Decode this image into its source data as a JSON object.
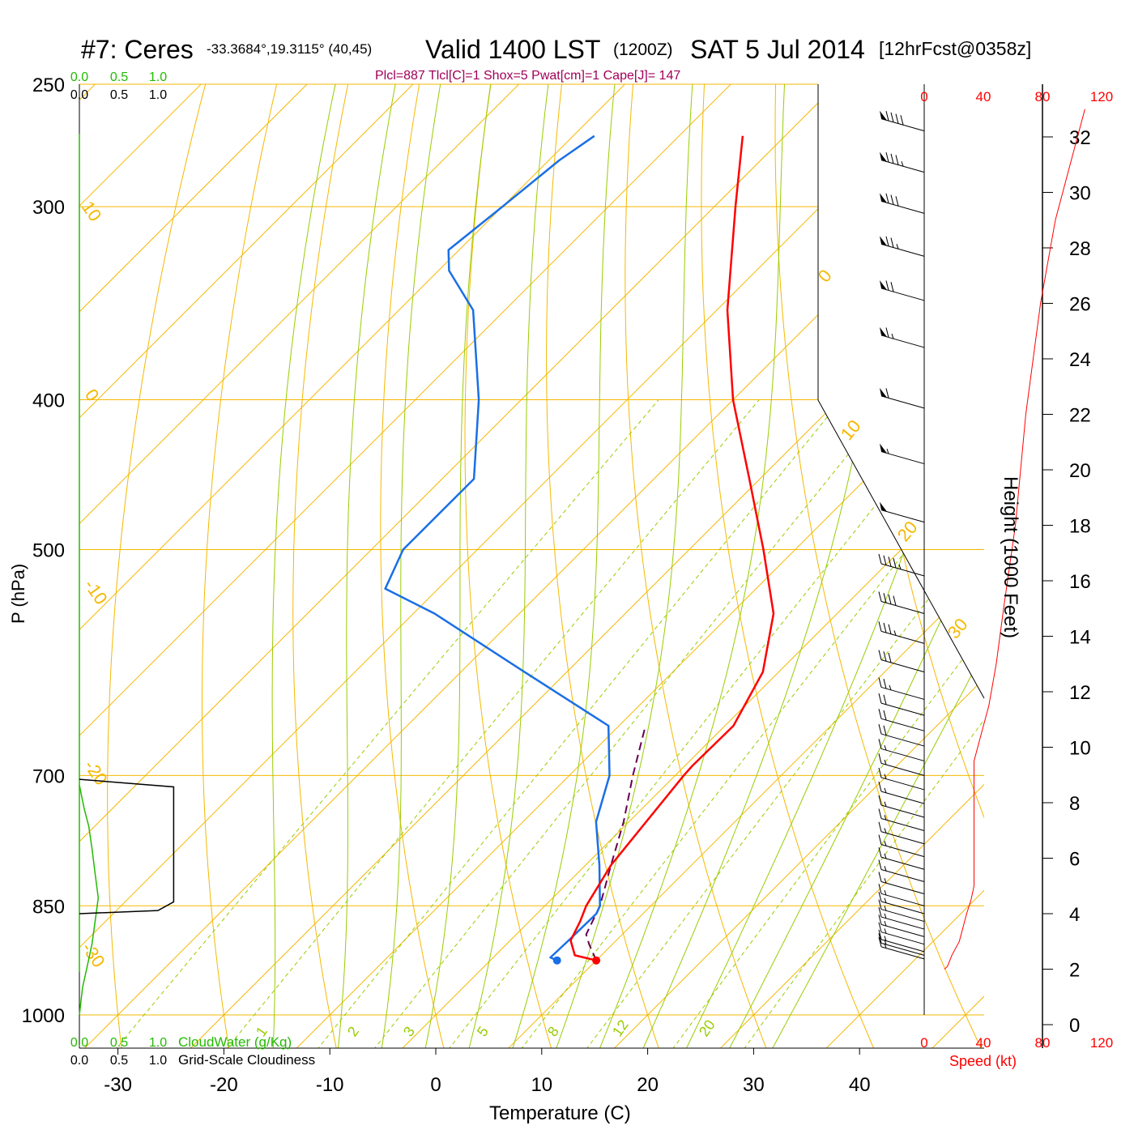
{
  "header": {
    "station": "#7: Ceres",
    "coords": "-33.3684°,19.3115° (40,45)",
    "valid_label": "Valid 1400 LST",
    "valid_utc": "(1200Z)",
    "date": "SAT 5 Jul 2014",
    "forecast": "[12hrFcst@0358z]",
    "indices": "Plcl=887 Tlcl[C]=1 Shox=5 Pwat[cm]=1 Cape[J]= 147"
  },
  "labels": {
    "ylabel": "P (hPa)",
    "xlabel": "Temperature (C)",
    "height_label": "Height (1000 Feet)",
    "speed_label": "Speed (kt)",
    "cloudwater_label": "CloudWater (g/Kg)",
    "cloudiness_label": "Grid-Scale Cloudiness"
  },
  "colors": {
    "isobar": "#f5b800",
    "isotherm": "#f5b800",
    "dry_adiabat": "#f5b800",
    "moist_adiabat": "#99cc00",
    "mixing_ratio": "#99cc00",
    "temperature": "#ff0000",
    "dewpoint": "#1a6fe6",
    "parcel": "#660055",
    "wind_speed": "#ff0000",
    "cloud_water": "#22bb00",
    "cloudiness": "#000000"
  },
  "chart_data": {
    "type": "line",
    "title": "Skew-T Log-P sounding",
    "pressure_levels": [
      "250",
      "300",
      "400",
      "500",
      "700",
      "850",
      "1000"
    ],
    "temperature_ticks": [
      "-30",
      "-20",
      "-10",
      "0",
      "10",
      "20",
      "30",
      "40"
    ],
    "height_ticks_kft": [
      "0",
      "2",
      "4",
      "6",
      "8",
      "10",
      "12",
      "14",
      "16",
      "18",
      "20",
      "22",
      "24",
      "26",
      "28",
      "30",
      "32"
    ],
    "speed_ticks": [
      "0",
      "40",
      "80",
      "120"
    ],
    "cloud_ticks": [
      "0.0",
      "0.5",
      "1.0"
    ],
    "isotherm_labels": [
      "10",
      "0",
      "-10",
      "-20",
      "-30",
      "0",
      "10",
      "20",
      "30"
    ],
    "mixing_ratio_labels": [
      "1",
      "2",
      "3",
      "5",
      "8",
      "12",
      "20"
    ],
    "series": [
      {
        "name": "Temperature",
        "points": [
          [
            922,
            10
          ],
          [
            915,
            7.5
          ],
          [
            895,
            5.7
          ],
          [
            870,
            4.8
          ],
          [
            850,
            3.9
          ],
          [
            800,
            2.4
          ],
          [
            700,
            0.8
          ],
          [
            690,
            0.7
          ],
          [
            650,
            0.8
          ],
          [
            600,
            -1.5
          ],
          [
            550,
            -6
          ],
          [
            500,
            -13
          ],
          [
            450,
            -21
          ],
          [
            400,
            -30
          ],
          [
            350,
            -39
          ],
          [
            300,
            -48
          ],
          [
            270,
            -54
          ]
        ]
      },
      {
        "name": "Dewpoint",
        "points": [
          [
            922,
            6.3
          ],
          [
            918,
            5.4
          ],
          [
            895,
            5.5
          ],
          [
            860,
            5.6
          ],
          [
            850,
            5.2
          ],
          [
            800,
            1.3
          ],
          [
            750,
            -3.1
          ],
          [
            700,
            -6.2
          ],
          [
            650,
            -11
          ],
          [
            600,
            -24
          ],
          [
            550,
            -38
          ],
          [
            530,
            -45
          ],
          [
            500,
            -47
          ],
          [
            450,
            -47
          ],
          [
            400,
            -54
          ],
          [
            350,
            -63
          ],
          [
            330,
            -69
          ],
          [
            320,
            -71
          ],
          [
            300,
            -70
          ],
          [
            280,
            -69
          ],
          [
            270,
            -68
          ]
        ]
      },
      {
        "name": "Parcel",
        "points": [
          [
            922,
            10
          ],
          [
            900,
            7.8
          ],
          [
            887,
            6.6
          ],
          [
            850,
            5.2
          ],
          [
            800,
            2.4
          ],
          [
            750,
            -0.5
          ],
          [
            700,
            -4
          ],
          [
            650,
            -7.5
          ]
        ]
      }
    ],
    "wind_barbs": [
      {
        "p": 920,
        "speed_kt": 15
      },
      {
        "p": 915,
        "speed_kt": 15
      },
      {
        "p": 910,
        "speed_kt": 15
      },
      {
        "p": 900,
        "speed_kt": 15
      },
      {
        "p": 890,
        "speed_kt": 15
      },
      {
        "p": 880,
        "speed_kt": 15
      },
      {
        "p": 870,
        "speed_kt": 15
      },
      {
        "p": 860,
        "speed_kt": 15
      },
      {
        "p": 850,
        "speed_kt": 15
      },
      {
        "p": 835,
        "speed_kt": 15
      },
      {
        "p": 820,
        "speed_kt": 15
      },
      {
        "p": 805,
        "speed_kt": 15
      },
      {
        "p": 790,
        "speed_kt": 15
      },
      {
        "p": 775,
        "speed_kt": 15
      },
      {
        "p": 760,
        "speed_kt": 15
      },
      {
        "p": 745,
        "speed_kt": 15
      },
      {
        "p": 730,
        "speed_kt": 15
      },
      {
        "p": 715,
        "speed_kt": 15
      },
      {
        "p": 700,
        "speed_kt": 15
      },
      {
        "p": 685,
        "speed_kt": 15
      },
      {
        "p": 670,
        "speed_kt": 20
      },
      {
        "p": 655,
        "speed_kt": 20
      },
      {
        "p": 640,
        "speed_kt": 20
      },
      {
        "p": 625,
        "speed_kt": 25
      },
      {
        "p": 600,
        "speed_kt": 30
      },
      {
        "p": 575,
        "speed_kt": 35
      },
      {
        "p": 550,
        "speed_kt": 40
      },
      {
        "p": 520,
        "speed_kt": 45
      },
      {
        "p": 480,
        "speed_kt": 50
      },
      {
        "p": 440,
        "speed_kt": 55
      },
      {
        "p": 405,
        "speed_kt": 60
      },
      {
        "p": 370,
        "speed_kt": 65
      },
      {
        "p": 345,
        "speed_kt": 70
      },
      {
        "p": 323,
        "speed_kt": 75
      },
      {
        "p": 303,
        "speed_kt": 80
      },
      {
        "p": 285,
        "speed_kt": 85
      },
      {
        "p": 268,
        "speed_kt": 90
      }
    ],
    "wind_speed_profile": [
      [
        0,
        2
      ],
      [
        2,
        2.1
      ],
      [
        5,
        2.5
      ],
      [
        10,
        3
      ],
      [
        15,
        4
      ],
      [
        18,
        4.5
      ],
      [
        20,
        5
      ],
      [
        20,
        6
      ],
      [
        20,
        7
      ],
      [
        20,
        8
      ],
      [
        20,
        9.5
      ],
      [
        25,
        10.5
      ],
      [
        30,
        11.5
      ],
      [
        35,
        13
      ],
      [
        40,
        15
      ],
      [
        48,
        18
      ],
      [
        55,
        22
      ],
      [
        65,
        26
      ],
      [
        75,
        29
      ],
      [
        85,
        31
      ],
      [
        95,
        33
      ]
    ],
    "cloud_water": [
      [
        0,
        1000
      ],
      [
        0.02,
        960
      ],
      [
        0.05,
        930
      ],
      [
        0.08,
        900
      ],
      [
        0.1,
        870
      ],
      [
        0.12,
        840
      ],
      [
        0.1,
        810
      ],
      [
        0.08,
        780
      ],
      [
        0.06,
        755
      ],
      [
        0.03,
        735
      ],
      [
        0,
        710
      ]
    ],
    "cloudiness": [
      [
        0,
        704
      ],
      [
        0.6,
        712
      ],
      [
        0.6,
        845
      ],
      [
        0.5,
        856
      ],
      [
        0,
        860
      ]
    ]
  }
}
